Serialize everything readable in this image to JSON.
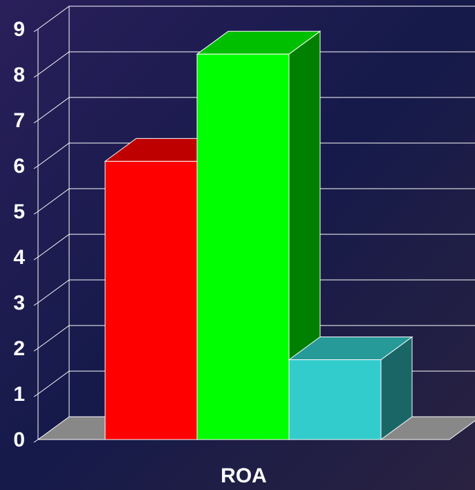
{
  "chart_data": {
    "type": "bar3d",
    "categories": [
      "ROA"
    ],
    "series": [
      {
        "color": "#ff0000",
        "values": [
          6.1
        ]
      },
      {
        "color": "#00ff00",
        "values": [
          8.45
        ]
      },
      {
        "color": "#33cccc",
        "values": [
          1.75
        ]
      }
    ],
    "ylim": [
      0,
      9
    ],
    "yticks": [
      0,
      1,
      2,
      3,
      4,
      5,
      6,
      7,
      8,
      9
    ],
    "grid": true
  }
}
